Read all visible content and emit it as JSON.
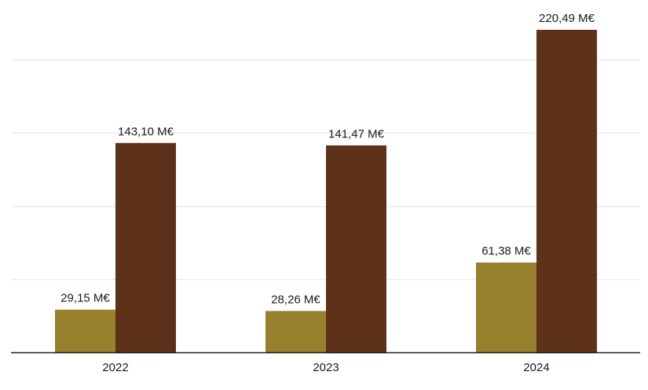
{
  "chart_data": {
    "type": "bar",
    "title": "",
    "xlabel": "",
    "ylabel": "",
    "categories": [
      "2022",
      "2023",
      "2024"
    ],
    "ylim": [
      0,
      225
    ],
    "grid": true,
    "legend": "none",
    "series": [
      {
        "name": "series-1",
        "color": "#97812e",
        "values": [
          29.15,
          28.26,
          61.38
        ],
        "labels": [
          "29,15 M€",
          "28,26 M€",
          "61,38 M€"
        ]
      },
      {
        "name": "series-2",
        "color": "#5e3219",
        "values": [
          143.1,
          141.47,
          220.49
        ],
        "labels": [
          "143,10 M€",
          "141,47 M€",
          "220,49 M€"
        ]
      }
    ]
  }
}
